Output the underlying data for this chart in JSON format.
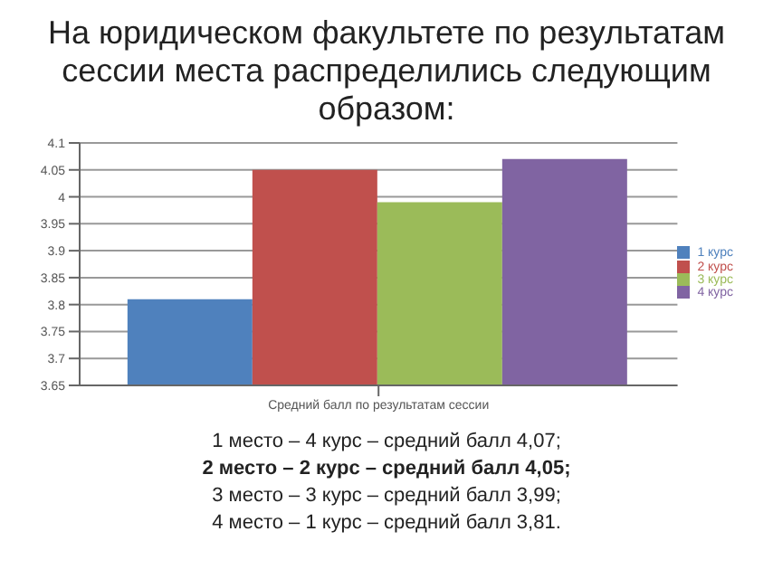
{
  "chart_data": {
    "type": "bar",
    "title": "На юридическом факультете по результатам сессии места распределились следующим образом:",
    "categories": [
      "Средний балл по результатам сессии"
    ],
    "series": [
      {
        "name": "1 курс",
        "color": "#4f81bd",
        "values": [
          3.81
        ]
      },
      {
        "name": "2 курс",
        "color": "#c0504d",
        "values": [
          4.05
        ]
      },
      {
        "name": "3 курс",
        "color": "#9bbb59",
        "values": [
          3.99
        ]
      },
      {
        "name": "4 курс",
        "color": "#8064a2",
        "values": [
          4.07
        ]
      }
    ],
    "ylim": [
      3.65,
      4.1
    ],
    "yticks": [
      3.65,
      3.7,
      3.75,
      3.8,
      3.85,
      3.9,
      3.95,
      4,
      4.05,
      4.1
    ],
    "grid": "y",
    "legend": "right",
    "annotations": [
      "1 место – 4 курс – средний балл 4,07;",
      "2 место – 2 курс – средний балл 4,05;",
      "3 место – 3 курс – средний балл 3,99;",
      "4 место – 1 курс – средний балл 3,81."
    ]
  }
}
